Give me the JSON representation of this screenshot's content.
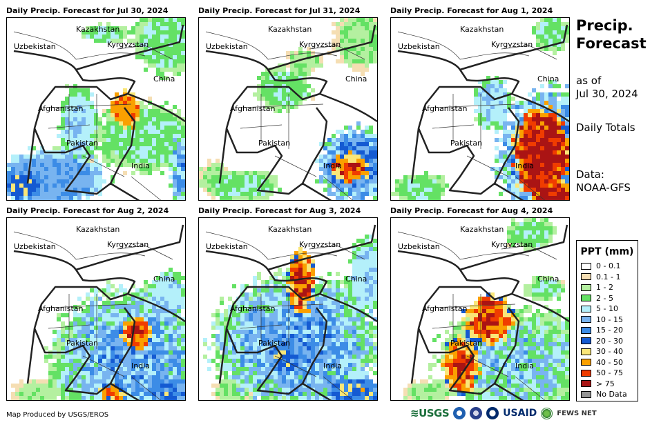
{
  "panels": [
    {
      "title": "Daily Precip. Forecast for Jul 30, 2024",
      "pattern": 0
    },
    {
      "title": "Daily Precip. Forecast for Jul 31, 2024",
      "pattern": 1
    },
    {
      "title": "Daily Precip. Forecast for Aug 1, 2024",
      "pattern": 2
    },
    {
      "title": "Daily Precip. Forecast for Aug 2, 2024",
      "pattern": 3
    },
    {
      "title": "Daily Precip. Forecast for Aug 3, 2024",
      "pattern": 4
    },
    {
      "title": "Daily Precip. Forecast for Aug 4, 2024",
      "pattern": 5
    }
  ],
  "map_labels": {
    "kazakhstan": "Kazakhstan",
    "uzbekistan": "Uzbekistan",
    "kyrgyzstan": "Kyrgyzstan",
    "china": "China",
    "afghanistan": "Afghanistan",
    "pakistan": "Pakistan",
    "india": "India"
  },
  "side": {
    "title": "Precip. Forecast",
    "asof_label": "as of",
    "asof_date": "Jul 30, 2024",
    "totals": "Daily Totals",
    "data_label": "Data:",
    "data_source": "NOAA-GFS"
  },
  "legend": {
    "title": "PPT (mm)",
    "items": [
      {
        "label": "0 - 0.1",
        "color": "#ffffff"
      },
      {
        "label": "0.1 - 1",
        "color": "#f5deb3"
      },
      {
        "label": "1 - 2",
        "color": "#b4f0a0"
      },
      {
        "label": "2 - 5",
        "color": "#64e164"
      },
      {
        "label": "5 - 10",
        "color": "#b4f0fa"
      },
      {
        "label": "10 - 15",
        "color": "#78b4f0"
      },
      {
        "label": "15 - 20",
        "color": "#3c8ce6"
      },
      {
        "label": "20 - 30",
        "color": "#145ad2"
      },
      {
        "label": "30 - 40",
        "color": "#fae678"
      },
      {
        "label": "40 - 50",
        "color": "#faa000"
      },
      {
        "label": "50 - 75",
        "color": "#f03c00"
      },
      {
        "label": "> 75",
        "color": "#aa1414"
      },
      {
        "label": "No Data",
        "color": "#969696"
      }
    ]
  },
  "footer": {
    "credit": "Map Produced by USGS/EROS"
  },
  "logos": {
    "usgs": "≋USGS",
    "usaid": "USAID",
    "fews": "FEWS NET"
  }
}
